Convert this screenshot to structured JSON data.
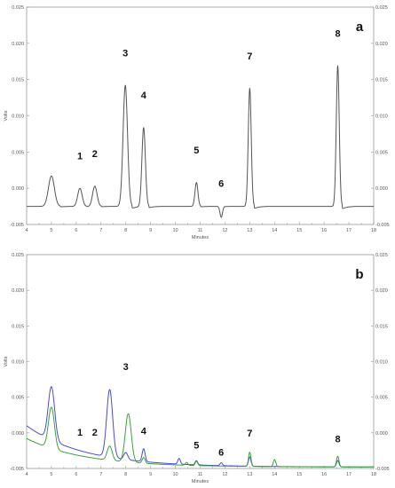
{
  "chart_data": [
    {
      "type": "line",
      "panel_label": "a",
      "xlabel": "Minutes",
      "ylabel": "Volts",
      "xlim": [
        4,
        18
      ],
      "ylim": [
        -0.005,
        0.025
      ],
      "x_ticks": [
        "4",
        "5",
        "6",
        "7",
        "8",
        "9",
        "10",
        "11",
        "12",
        "13",
        "14",
        "15",
        "16",
        "17",
        "18"
      ],
      "y_ticks": [
        "-0.005",
        "0.000",
        "0.005",
        "0.010",
        "0.015",
        "0.020",
        "0.025"
      ],
      "baseline": -0.0025,
      "series": [
        {
          "color": "#555555",
          "peaks": [
            {
              "t": 5.0,
              "h": 0.0042,
              "w": 0.12
            },
            {
              "t": 6.15,
              "h": 0.0025,
              "w": 0.09
            },
            {
              "t": 6.75,
              "h": 0.0028,
              "w": 0.09
            },
            {
              "t": 7.98,
              "h": 0.0167,
              "w": 0.09
            },
            {
              "t": 8.72,
              "h": 0.0109,
              "w": 0.07
            },
            {
              "t": 10.85,
              "h": 0.0033,
              "w": 0.06
            },
            {
              "t": 11.85,
              "h": -0.0015,
              "w": 0.05
            },
            {
              "t": 13.0,
              "h": 0.0163,
              "w": 0.06
            },
            {
              "t": 16.55,
              "h": 0.0194,
              "w": 0.06
            }
          ]
        }
      ],
      "peak_labels": [
        {
          "text": "1",
          "t": 6.15,
          "v": 0.004
        },
        {
          "text": "2",
          "t": 6.75,
          "v": 0.0043
        },
        {
          "text": "3",
          "t": 7.98,
          "v": 0.0182
        },
        {
          "text": "4",
          "t": 8.72,
          "v": 0.0124
        },
        {
          "text": "5",
          "t": 10.85,
          "v": 0.0048
        },
        {
          "text": "6",
          "t": 11.85,
          "v": 0.0002
        },
        {
          "text": "7",
          "t": 13.0,
          "v": 0.0178
        },
        {
          "text": "8",
          "t": 16.55,
          "v": 0.0209
        }
      ]
    },
    {
      "type": "line",
      "panel_label": "b",
      "xlabel": "Minutes",
      "ylabel": "Volts",
      "xlim": [
        4,
        18
      ],
      "ylim": [
        -0.005,
        0.025
      ],
      "x_ticks": [
        "4",
        "5",
        "6",
        "7",
        "8",
        "9",
        "10",
        "11",
        "12",
        "13",
        "14",
        "15",
        "16",
        "17",
        "18"
      ],
      "y_ticks": [
        "-0.005",
        "0.000",
        "0.005",
        "0.010",
        "0.015",
        "0.020",
        "0.025"
      ],
      "series": [
        {
          "color": "#4a4ad6",
          "baseline_start": 0.001,
          "baseline_end": -0.0048,
          "peaks": [
            {
              "t": 5.0,
              "h": 0.0075,
              "w": 0.13
            },
            {
              "t": 7.35,
              "h": 0.0095,
              "w": 0.12
            },
            {
              "t": 8.0,
              "h": 0.001,
              "w": 0.08
            },
            {
              "t": 8.72,
              "h": 0.0018,
              "w": 0.06
            },
            {
              "t": 10.15,
              "h": 0.0008,
              "w": 0.05
            },
            {
              "t": 10.85,
              "h": 0.0006,
              "w": 0.05
            },
            {
              "t": 11.85,
              "h": 0.0004,
              "w": 0.05
            },
            {
              "t": 13.0,
              "h": 0.0013,
              "w": 0.05
            },
            {
              "t": 16.55,
              "h": 0.0009,
              "w": 0.05
            }
          ]
        },
        {
          "color": "#3aa23a",
          "baseline_start": -0.0008,
          "baseline_end": -0.0048,
          "peaks": [
            {
              "t": 5.0,
              "h": 0.0058,
              "w": 0.12
            },
            {
              "t": 7.35,
              "h": 0.002,
              "w": 0.1
            },
            {
              "t": 8.1,
              "h": 0.0068,
              "w": 0.12
            },
            {
              "t": 8.72,
              "h": 0.0008,
              "w": 0.06
            },
            {
              "t": 10.45,
              "h": 0.0004,
              "w": 0.05
            },
            {
              "t": 10.85,
              "h": 0.0006,
              "w": 0.05
            },
            {
              "t": 13.0,
              "h": 0.002,
              "w": 0.05
            },
            {
              "t": 14.0,
              "h": 0.001,
              "w": 0.05
            },
            {
              "t": 16.55,
              "h": 0.0015,
              "w": 0.05
            }
          ]
        }
      ],
      "peak_labels": [
        {
          "text": "1",
          "t": 6.15,
          "v": -0.0004
        },
        {
          "text": "2",
          "t": 6.75,
          "v": -0.0004
        },
        {
          "text": "3",
          "t": 8.0,
          "v": 0.0088
        },
        {
          "text": "4",
          "t": 8.72,
          "v": -0.0002
        },
        {
          "text": "5",
          "t": 10.85,
          "v": -0.0022
        },
        {
          "text": "6",
          "t": 11.85,
          "v": -0.0032
        },
        {
          "text": "7",
          "t": 13.0,
          "v": -0.0005
        },
        {
          "text": "8",
          "t": 16.55,
          "v": -0.0013
        }
      ]
    }
  ]
}
